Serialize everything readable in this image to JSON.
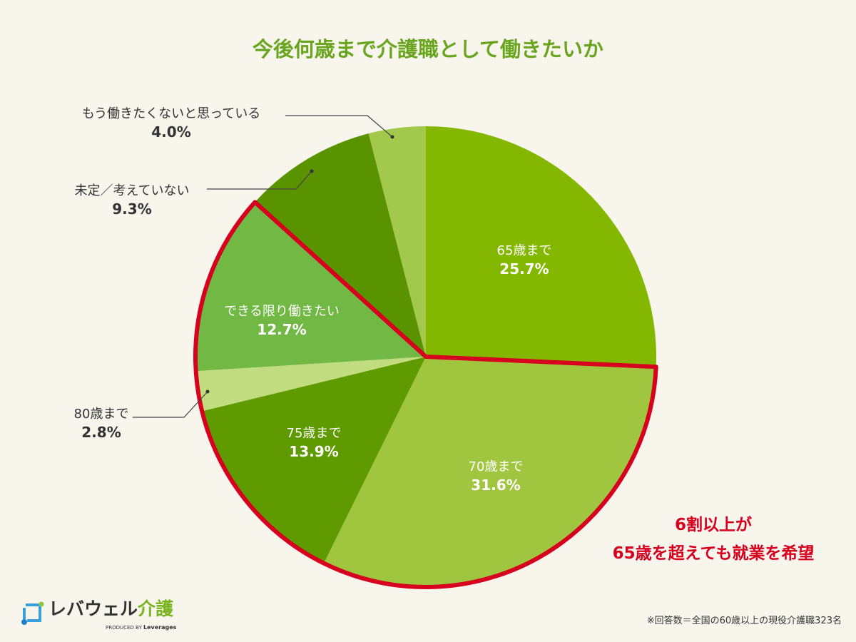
{
  "chart_data": {
    "type": "pie",
    "title": "今後何歳まで介護職として働きたいか",
    "slices": [
      {
        "label": "65歳まで",
        "value": 25.7,
        "display": "25.7%",
        "color": "#84b700",
        "highlight": false
      },
      {
        "label": "70歳まで",
        "value": 31.6,
        "display": "31.6%",
        "color": "#a0c53e",
        "highlight": true
      },
      {
        "label": "75歳まで",
        "value": 13.9,
        "display": "13.9%",
        "color": "#5f9a00",
        "highlight": true
      },
      {
        "label": "80歳まで",
        "value": 2.8,
        "display": "2.8%",
        "color": "#c2dc80",
        "highlight": true
      },
      {
        "label": "できる限り働きたい",
        "value": 12.7,
        "display": "12.7%",
        "color": "#72b844",
        "highlight": true
      },
      {
        "label": "未定／考えていない",
        "value": 9.3,
        "display": "9.3%",
        "color": "#5a9300",
        "highlight": false
      },
      {
        "label": "もう働きたくないと思っている",
        "value": 4.0,
        "display": "4.0%",
        "color": "#a2c94c",
        "highlight": false
      }
    ],
    "start": "12 o'clock, clockwise",
    "highlight_color": "#d7001e",
    "annotation": [
      "6割以上が",
      "65歳を超えても就業を希望"
    ]
  },
  "footnote": "※回答数＝全国の60歳以上の現役介護職323名",
  "logo": {
    "name": "レバウェル",
    "suffix": "介護",
    "produced_by": "PRODUCED BY",
    "brand": "Leverages"
  }
}
